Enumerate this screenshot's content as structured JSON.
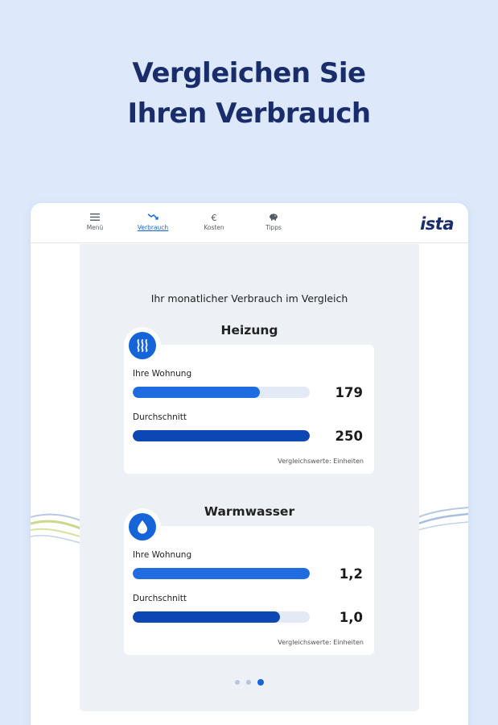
{
  "headline": {
    "line1": "Vergleichen Sie",
    "line2": "Ihren Verbrauch"
  },
  "nav": {
    "items": [
      {
        "label": "Menü",
        "icon": "menu-icon"
      },
      {
        "label": "Verbrauch",
        "icon": "consumption-trend-icon",
        "active": true
      },
      {
        "label": "Kosten",
        "icon": "euro-icon"
      },
      {
        "label": "Tipps",
        "icon": "piggy-bank-icon"
      }
    ],
    "logo": "ista"
  },
  "panel_title": "Ihr monatlicher Verbrauch im Vergleich",
  "sections": [
    {
      "title": "Heizung",
      "icon": "heating-icon",
      "rows": [
        {
          "label": "Ihre Wohnung",
          "value": "179",
          "fraction": 0.716
        },
        {
          "label": "Durchschnitt",
          "value": "250",
          "fraction": 1.0
        }
      ],
      "footnote": "Vergleichswerte: Einheiten"
    },
    {
      "title": "Warmwasser",
      "icon": "water-drop-icon",
      "rows": [
        {
          "label": "Ihre Wohnung",
          "value": "1,2",
          "fraction": 1.0
        },
        {
          "label": "Durchschnitt",
          "value": "1,0",
          "fraction": 0.833
        }
      ],
      "footnote": "Vergleichswerte: Einheiten"
    }
  ],
  "pager": {
    "count": 3,
    "active_index": 2
  },
  "colors": {
    "background": "#dde9fb",
    "headline": "#1a2d6b",
    "accent": "#1565d8",
    "bar_mine": "#1e6ce0",
    "bar_avg": "#0d47b3"
  }
}
